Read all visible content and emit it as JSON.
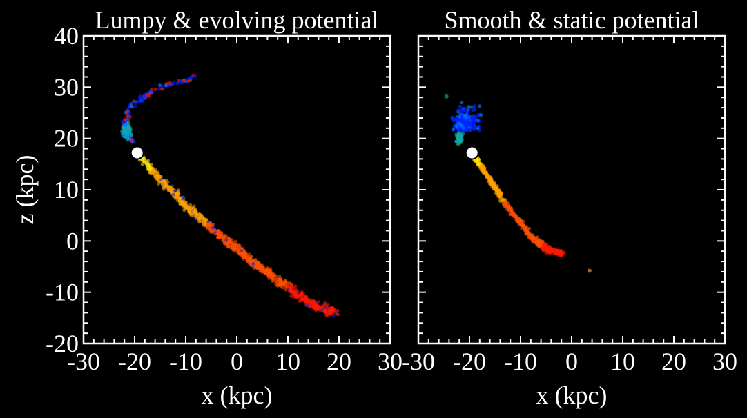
{
  "colors": {
    "background": "#000000",
    "axes": "#ffffff",
    "progenitor": "#ffffff",
    "stream_colormap": [
      "#0022ff",
      "#0070ff",
      "#14a8a8",
      "#ffe000",
      "#ffa000",
      "#ff5000",
      "#ff1a00"
    ]
  },
  "chart_data": [
    {
      "type": "scatter",
      "title": "Lumpy & evolving potential",
      "xlabel": "x (kpc)",
      "ylabel": "z (kpc)",
      "xlim": [
        -30,
        30
      ],
      "ylim": [
        -20,
        40
      ],
      "xticks": [
        -30,
        -20,
        -10,
        0,
        10,
        20,
        30
      ],
      "yticks": [
        -20,
        -10,
        0,
        10,
        20,
        30,
        40
      ],
      "xtick_labels": [
        "-30",
        "-20",
        "-10",
        "0",
        "10",
        "20",
        "30"
      ],
      "ytick_labels": [
        "-20",
        "-10",
        "0",
        "10",
        "20",
        "30",
        "40"
      ],
      "grid": false,
      "progenitor": {
        "x": -19.5,
        "z": 17.2
      },
      "stream_path": [
        {
          "x": -19.5,
          "z": 17.2
        },
        {
          "x": -15,
          "z": 12
        },
        {
          "x": -10,
          "z": 7
        },
        {
          "x": -5,
          "z": 2.5
        },
        {
          "x": 0,
          "z": -1.5
        },
        {
          "x": 5,
          "z": -5.5
        },
        {
          "x": 10,
          "z": -9
        },
        {
          "x": 15,
          "z": -12.5
        },
        {
          "x": 19.5,
          "z": -14
        }
      ],
      "leading_arc": [
        {
          "x": -20.5,
          "z": 19.5
        },
        {
          "x": -22,
          "z": 22.5
        },
        {
          "x": -21,
          "z": 26
        },
        {
          "x": -17,
          "z": 29
        },
        {
          "x": -12,
          "z": 31
        },
        {
          "x": -8,
          "z": 31.8
        }
      ],
      "cyan_clump": {
        "x": -21.5,
        "z": 21.5
      }
    },
    {
      "type": "scatter",
      "title": "Smooth & static potential",
      "xlabel": "x (kpc)",
      "ylabel": "",
      "xlim": [
        -30,
        30
      ],
      "ylim": [
        -20,
        40
      ],
      "xticks": [
        -30,
        -20,
        -10,
        0,
        10,
        20,
        30
      ],
      "yticks": [
        -20,
        -10,
        0,
        10,
        20,
        30,
        40
      ],
      "xtick_labels": [
        "-30",
        "-20",
        "-10",
        "0",
        "10",
        "20",
        "30"
      ],
      "ytick_labels": [],
      "grid": false,
      "progenitor": {
        "x": -19.5,
        "z": 17.2
      },
      "stream_path": [
        {
          "x": -19.5,
          "z": 17.2
        },
        {
          "x": -16,
          "z": 12
        },
        {
          "x": -12,
          "z": 6
        },
        {
          "x": -8,
          "z": 1
        },
        {
          "x": -5,
          "z": -1.5
        },
        {
          "x": -2,
          "z": -2.5
        }
      ],
      "stray_points": [
        {
          "x": 3.5,
          "z": -5.8
        },
        {
          "x": -24.5,
          "z": 28.2
        }
      ],
      "blue_fan": {
        "x": -21.5,
        "z": 23
      }
    }
  ]
}
